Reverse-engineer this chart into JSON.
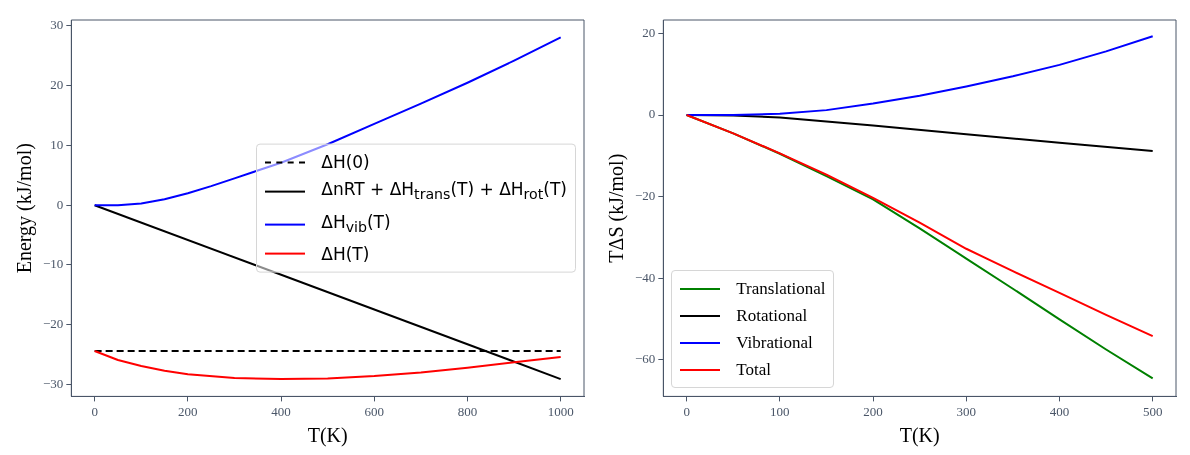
{
  "chart_data": [
    {
      "type": "line",
      "xlabel": "T(K)",
      "ylabel": "Energy (kJ/mol)",
      "xlim": [
        -50,
        1050
      ],
      "ylim": [
        -32,
        31
      ],
      "xticks": [
        0,
        200,
        400,
        600,
        800,
        1000
      ],
      "yticks": [
        -30,
        -20,
        -10,
        0,
        10,
        20,
        30
      ],
      "grid": false,
      "legend": "center right",
      "marker": "none",
      "series": [
        {
          "name": "ΔH(0)",
          "color": "#000000",
          "line_style": "dashed",
          "x": [
            0,
            1000
          ],
          "values": [
            -24.4,
            -24.4
          ]
        },
        {
          "name": "ΔnRT + ΔH$_{trans}$(T) + ΔH$_{rot}$(T)",
          "color": "#000000",
          "line_style": "solid",
          "x": [
            0,
            1000
          ],
          "values": [
            0,
            -29.1
          ]
        },
        {
          "name": "ΔH$_{vib}$(T)",
          "color": "#0000ff",
          "line_style": "solid",
          "x": [
            0,
            50,
            100,
            150,
            200,
            250,
            300,
            350,
            400,
            500,
            600,
            700,
            800,
            900,
            1000
          ],
          "values": [
            0,
            0,
            0.3,
            1.0,
            2.0,
            3.2,
            4.5,
            5.8,
            7.1,
            10.2,
            13.6,
            17.0,
            20.5,
            24.2,
            28.1
          ]
        },
        {
          "name": "ΔH(T)",
          "color": "#ff0000",
          "line_style": "solid",
          "x": [
            0,
            50,
            100,
            150,
            200,
            300,
            400,
            500,
            600,
            700,
            800,
            900,
            1000
          ],
          "values": [
            -24.4,
            -25.9,
            -26.9,
            -27.7,
            -28.3,
            -28.9,
            -29.1,
            -29.0,
            -28.6,
            -28.0,
            -27.2,
            -26.3,
            -25.4
          ]
        }
      ]
    },
    {
      "type": "line",
      "xlabel": "T(K)",
      "ylabel": "TΔS (kJ/mol)",
      "xlim": [
        -25,
        525
      ],
      "ylim": [
        -69,
        23.3
      ],
      "xticks": [
        0,
        100,
        200,
        300,
        400,
        500
      ],
      "yticks": [
        -60,
        -40,
        -20,
        0,
        20
      ],
      "grid": false,
      "legend": "bottom left",
      "marker": "none",
      "series": [
        {
          "name": "Translational",
          "color": "#008000",
          "line_style": "solid",
          "x": [
            0,
            50,
            100,
            150,
            200,
            250,
            300,
            350,
            400,
            450,
            500
          ],
          "values": [
            0,
            -4.5,
            -9.5,
            -15,
            -20.7,
            -27.8,
            -35.2,
            -42.6,
            -50.1,
            -57.5,
            -64.6
          ]
        },
        {
          "name": "Rotational",
          "color": "#000000",
          "line_style": "solid",
          "x": [
            0,
            50,
            100,
            200,
            300,
            400,
            500
          ],
          "values": [
            0,
            -0.1,
            -0.6,
            -2.6,
            -4.7,
            -6.8,
            -8.8
          ]
        },
        {
          "name": "Vibrational",
          "color": "#0000ff",
          "line_style": "solid",
          "x": [
            0,
            50,
            100,
            150,
            200,
            250,
            300,
            350,
            400,
            450,
            500
          ],
          "values": [
            0,
            0,
            0.3,
            1.2,
            2.8,
            4.7,
            7.0,
            9.5,
            12.3,
            15.6,
            19.3
          ]
        },
        {
          "name": "Total",
          "color": "#ff0000",
          "line_style": "solid",
          "x": [
            0,
            50,
            100,
            150,
            200,
            250,
            300,
            350,
            400,
            450,
            500
          ],
          "values": [
            0,
            -4.5,
            -9.4,
            -14.6,
            -20.3,
            -26.4,
            -32.8,
            -38.3,
            -43.6,
            -49.0,
            -54.2
          ]
        }
      ]
    }
  ]
}
